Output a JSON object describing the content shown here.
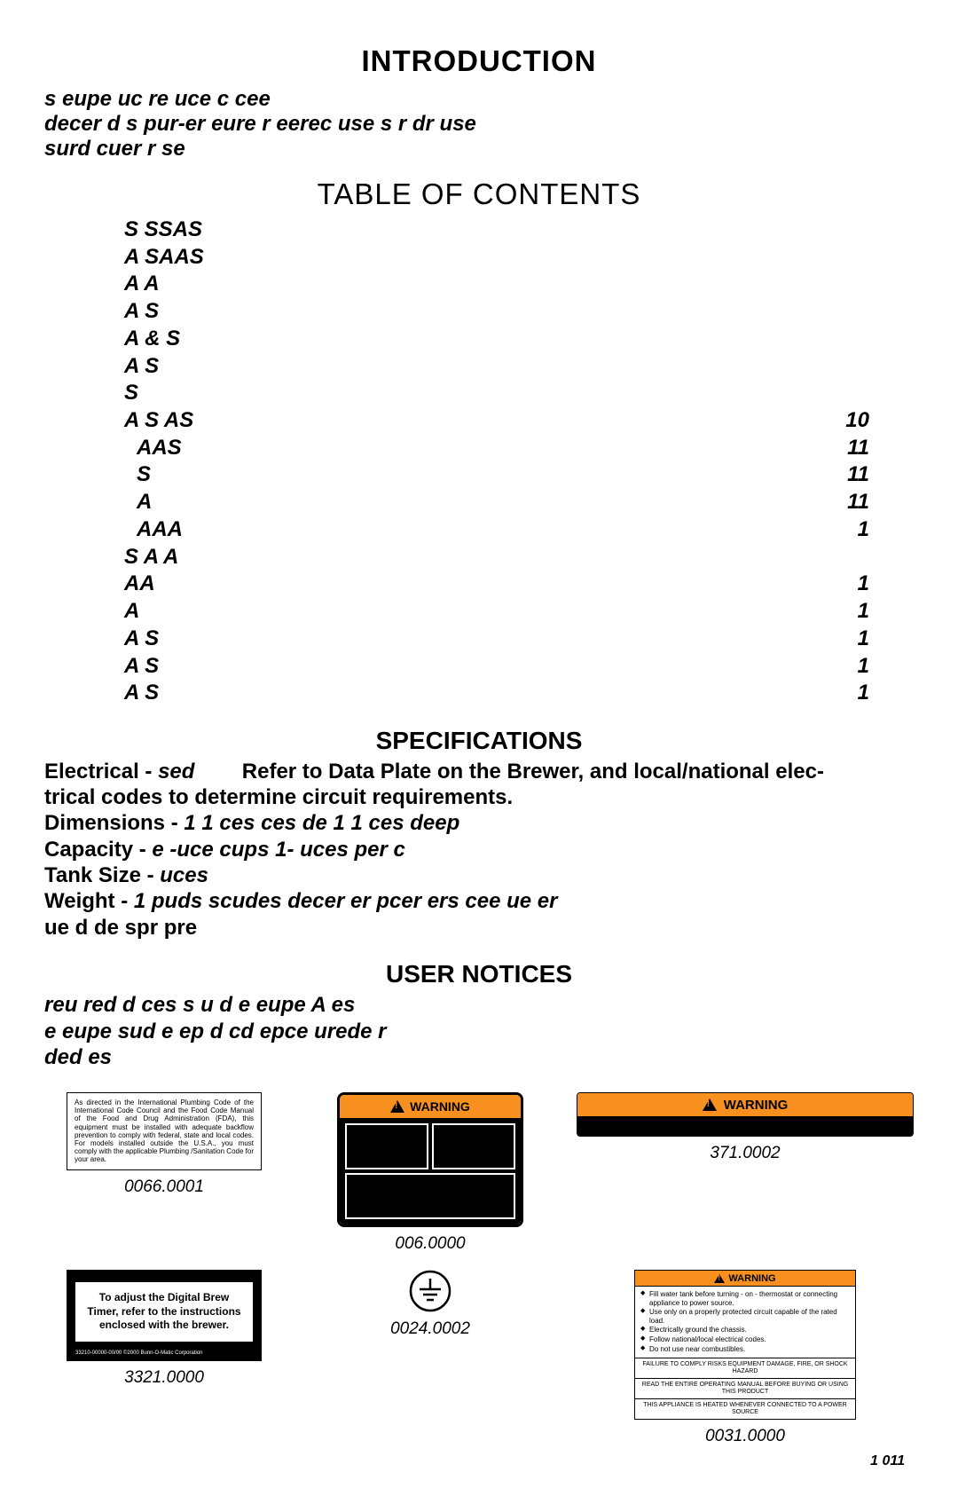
{
  "headings": {
    "intro": "INTRODUCTION",
    "toc": "TABLE OF CONTENTS",
    "spec": "SPECIFICATIONS",
    "notices": "USER NOTICES"
  },
  "fonts": {
    "h1_size": 33,
    "toc_title_size": 33,
    "body_size": 24,
    "toc_size": 24,
    "spec_title_size": 28,
    "notices_title_size": 28
  },
  "intro": {
    "l1": "s eupe  uc re  uce c  cee",
    "l2": "decer d s  pur-er eure r eerec use   s  r dr use",
    "l3": "  surd cuer r se"
  },
  "toc": [
    {
      "label": "S SSAS",
      "page": "",
      "indent": false
    },
    {
      "label": "A SAAS",
      "page": "",
      "indent": false
    },
    {
      "label": "A A",
      "page": "",
      "indent": false
    },
    {
      "label": "A S",
      "page": "",
      "indent": false
    },
    {
      "label": "A &  S",
      "page": "",
      "indent": false
    },
    {
      "label": "A   S",
      "page": "",
      "indent": false
    },
    {
      "label": " S",
      "page": "",
      "indent": false
    },
    {
      "label": "A S AS",
      "page": "10",
      "indent": false
    },
    {
      "label": "AAS",
      "page": "11",
      "indent": true
    },
    {
      "label": "S",
      "page": "11",
      "indent": true
    },
    {
      "label": "A",
      "page": "11",
      "indent": true
    },
    {
      "label": "AAA",
      "page": "1",
      "indent": true
    },
    {
      "label": "S A A",
      "page": "",
      "indent": false
    },
    {
      "label": "AA",
      "page": "1",
      "indent": false
    },
    {
      "label": "A",
      "page": "1",
      "indent": false
    },
    {
      "label": " A S",
      "page": "1",
      "indent": false
    },
    {
      "label": "A S",
      "page": "1",
      "indent": false
    },
    {
      "label": " A S",
      "page": "1",
      "indent": false
    }
  ],
  "spec": {
    "elec_label": "Electrical - ",
    "elec_val": "sed",
    "elec_rest1": "Refer to Data Plate on the Brewer, and local/national elec-",
    "elec_rest2": "trical codes to determine circuit requirements.",
    "dim_label": "Dimensions - ",
    "dim_val": "1 1 ces   ces de 1 1 ces deep",
    "cap_label": "Capacity - ",
    "cap_val": " e -uce cups 1- uces per c",
    "tank_label": "Tank Size - ",
    "tank_val": " uces",
    "weight_label": "Weight - ",
    "weight_val1": "1 puds scudes decer er pcer ers cee ue er",
    "weight_val2": "ue d de spr pre"
  },
  "notices": {
    "l1": "reu red d  ces s u d  e eupe  A es",
    "l2": " e eupe sud e ep  d cd epce  urede r",
    "l3": "ded es"
  },
  "labels": {
    "l1": {
      "text": "As directed in the International Plumbing Code of the International Code Council and the Food Code Manual of the Food and Drug Administration (FDA), this equipment must be installed with adequate backflow prevention to comply with federal, state and local codes. For models installed outside the U.S.A., you must comply with the applicable Plumbing /Sanitation Code for your area.",
      "num": "0066.0001"
    },
    "l2": {
      "bar": "WARNING",
      "num": "006.0000"
    },
    "l3": {
      "bar": "WARNING",
      "num": "371.0002"
    },
    "l4": {
      "text": "To adjust the Digital Brew Timer, refer to the instructions enclosed with the brewer.",
      "foot": "33210-00000-00/00 ©2000 Bunn-O-Matic Corporation",
      "num": "3321.0000"
    },
    "l5": {
      "num": "0024.0002"
    },
    "l6": {
      "bar": "WARNING",
      "items": [
        "Fill water tank before turning - on - thermostat or connecting appliance to power source.",
        "Use only on a properly protected circuit capable of the rated load.",
        "Electrically ground the chassis.",
        "Follow national/local electrical codes.",
        "Do not use near combustibles."
      ],
      "sec1": "FAILURE TO COMPLY RISKS EQUIPMENT DAMAGE, FIRE, OR SHOCK HAZARD",
      "sec2": "READ THE ENTIRE OPERATING MANUAL BEFORE BUYING OR USING THIS PRODUCT",
      "sec3": "THIS APPLIANCE IS HEATED WHENEVER CONNECTED TO A POWER SOURCE",
      "num": "0031.0000"
    }
  },
  "page_number": "1 011",
  "colors": {
    "orange": "#f7901e",
    "black": "#000000",
    "white": "#ffffff"
  }
}
